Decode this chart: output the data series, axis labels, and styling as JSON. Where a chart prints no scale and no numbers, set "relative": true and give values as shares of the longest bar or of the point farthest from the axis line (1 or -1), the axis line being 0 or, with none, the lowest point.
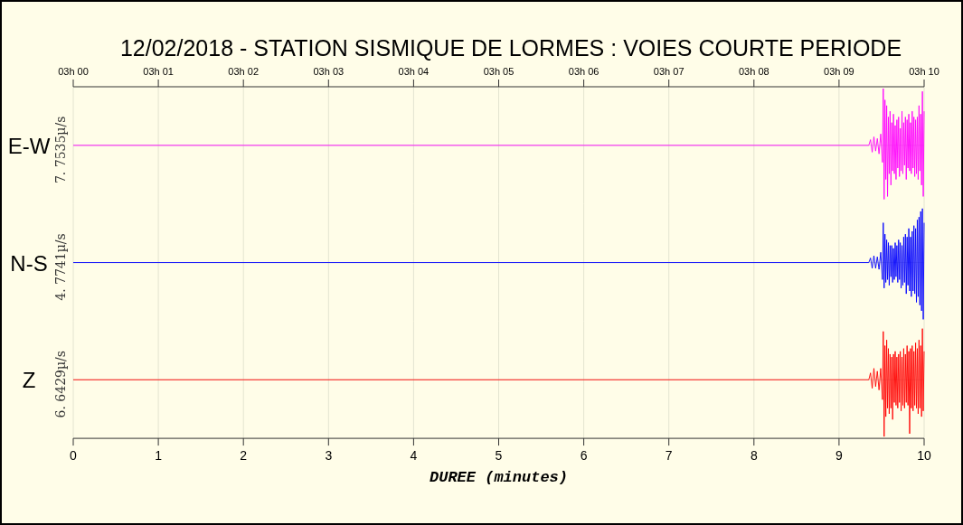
{
  "chart_data": [
    {
      "type": "line",
      "title": "12/02/2018  -  STATION SISMIQUE DE LORMES : VOIES COURTE PERIODE",
      "ylabel": "E-W",
      "annotations": [
        "7. 7535µ/s"
      ],
      "relative": true,
      "grid": "x",
      "xlim": [
        0,
        10
      ],
      "x2lim": [
        "2018-02-12T03:00",
        "2018-02-12T03:10"
      ],
      "x2ticks": [
        {
          "value": "2018-02-12T03:00",
          "label": "03h 00"
        },
        {
          "value": "2018-02-12T03:01",
          "label": "03h 01"
        },
        {
          "value": "2018-02-12T03:02",
          "label": "03h 02"
        },
        {
          "value": "2018-02-12T03:03",
          "label": "03h 03"
        },
        {
          "value": "2018-02-12T03:04",
          "label": "03h 04"
        },
        {
          "value": "2018-02-12T03:05",
          "label": "03h 05"
        },
        {
          "value": "2018-02-12T03:06",
          "label": "03h 06"
        },
        {
          "value": "2018-02-12T03:07",
          "label": "03h 07"
        },
        {
          "value": "2018-02-12T03:08",
          "label": "03h 08"
        },
        {
          "value": "2018-02-12T03:09",
          "label": "03h 09"
        },
        {
          "value": "2018-02-12T03:10",
          "label": "03h 10"
        }
      ],
      "x": [
        0,
        9.35,
        9.37,
        9.39,
        9.41,
        9.43,
        9.45,
        9.47,
        9.49,
        9.51,
        9.52,
        9.53,
        9.54,
        9.55,
        9.56,
        9.57,
        9.58,
        9.59,
        9.6,
        9.61,
        9.62,
        9.63,
        9.64,
        9.65,
        9.66,
        9.67,
        9.68,
        9.69,
        9.7,
        9.71,
        9.72,
        9.73,
        9.74,
        9.75,
        9.76,
        9.77,
        9.78,
        9.79,
        9.8,
        9.81,
        9.82,
        9.83,
        9.84,
        9.85,
        9.86,
        9.87,
        9.88,
        9.89,
        9.9,
        9.91,
        9.92,
        9.93,
        9.94,
        9.95,
        9.96,
        9.97,
        9.98,
        9.99,
        10
      ],
      "series": [
        {
          "color": "#ff00ff",
          "values": [
            0,
            0,
            0.1,
            -0.12,
            0.15,
            -0.1,
            0.12,
            -0.15,
            0.2,
            -0.3,
            1,
            -0.95,
            0.8,
            -0.6,
            0.7,
            -0.9,
            0.5,
            -0.5,
            0.6,
            -0.7,
            0.4,
            -0.45,
            0.55,
            -0.5,
            0.35,
            -0.6,
            0.45,
            -0.4,
            0.5,
            -0.55,
            0.3,
            -0.45,
            0.6,
            -0.5,
            0.4,
            -0.35,
            0.5,
            -0.6,
            0.45,
            -0.4,
            0.55,
            -0.45,
            0.4,
            -0.5,
            0.6,
            -0.4,
            0.5,
            -0.55,
            0.45,
            -0.5,
            0.5,
            -0.6,
            0.7,
            -0.45,
            0.55,
            -0.7,
            0.95,
            -0.9,
            0.6
          ]
        }
      ]
    },
    {
      "type": "line",
      "ylabel": "N-S",
      "annotations": [
        "4. 7741µ/s"
      ],
      "relative": true,
      "grid": "x",
      "xlim": [
        0,
        10
      ],
      "xticks": [
        0,
        1,
        2,
        3,
        4,
        5,
        6,
        7,
        8,
        9,
        10
      ],
      "tick_labels": false,
      "x": [
        0,
        9.35,
        9.37,
        9.39,
        9.41,
        9.43,
        9.45,
        9.47,
        9.49,
        9.51,
        9.52,
        9.53,
        9.54,
        9.55,
        9.56,
        9.57,
        9.58,
        9.59,
        9.6,
        9.61,
        9.62,
        9.63,
        9.64,
        9.65,
        9.66,
        9.67,
        9.68,
        9.69,
        9.7,
        9.71,
        9.72,
        9.73,
        9.74,
        9.75,
        9.76,
        9.77,
        9.78,
        9.79,
        9.8,
        9.81,
        9.82,
        9.83,
        9.84,
        9.85,
        9.86,
        9.87,
        9.88,
        9.89,
        9.9,
        9.91,
        9.92,
        9.93,
        9.94,
        9.95,
        9.96,
        9.97,
        9.98,
        9.99,
        10
      ],
      "series": [
        {
          "color": "#0000ff",
          "values": [
            0,
            0,
            0.08,
            -0.1,
            0.12,
            -0.1,
            0.1,
            -0.12,
            0.18,
            -0.3,
            0.7,
            -0.45,
            0.5,
            -0.35,
            0.4,
            -0.3,
            0.35,
            -0.4,
            0.3,
            -0.25,
            0.3,
            -0.35,
            0.25,
            -0.3,
            0.35,
            -0.25,
            0.3,
            -0.35,
            0.4,
            -0.3,
            0.35,
            -0.45,
            0.3,
            -0.4,
            0.45,
            -0.35,
            0.5,
            -0.55,
            0.45,
            -0.4,
            0.6,
            -0.5,
            0.45,
            -0.6,
            0.55,
            -0.5,
            0.65,
            -0.55,
            0.6,
            -0.7,
            0.75,
            -0.6,
            0.8,
            -0.75,
            0.9,
            -0.85,
            0.95,
            -1,
            0.7
          ]
        }
      ]
    },
    {
      "type": "line",
      "ylabel": "Z",
      "annotations": [
        "6. 6429µ/s"
      ],
      "xlabel": "DUREE (minutes)",
      "relative": true,
      "grid": "x",
      "xlim": [
        0,
        10
      ],
      "xticks": [
        0,
        1,
        2,
        3,
        4,
        5,
        6,
        7,
        8,
        9,
        10
      ],
      "x": [
        0,
        9.35,
        9.37,
        9.39,
        9.41,
        9.43,
        9.45,
        9.47,
        9.49,
        9.51,
        9.52,
        9.53,
        9.54,
        9.55,
        9.56,
        9.57,
        9.58,
        9.59,
        9.6,
        9.61,
        9.62,
        9.63,
        9.64,
        9.65,
        9.66,
        9.67,
        9.68,
        9.69,
        9.7,
        9.71,
        9.72,
        9.73,
        9.74,
        9.75,
        9.76,
        9.77,
        9.78,
        9.79,
        9.8,
        9.81,
        9.82,
        9.83,
        9.84,
        9.85,
        9.86,
        9.87,
        9.88,
        9.89,
        9.9,
        9.91,
        9.92,
        9.93,
        9.94,
        9.95,
        9.96,
        9.97,
        9.98,
        9.99,
        10
      ],
      "series": [
        {
          "color": "#ff0000",
          "values": [
            0,
            0,
            0.12,
            -0.15,
            0.2,
            -0.12,
            0.15,
            -0.18,
            0.2,
            -0.35,
            0.85,
            -1,
            0.6,
            -0.65,
            0.7,
            -0.5,
            0.55,
            -0.6,
            0.45,
            -0.5,
            0.4,
            -0.7,
            0.45,
            -0.4,
            0.5,
            -0.45,
            0.4,
            -0.5,
            0.45,
            -0.4,
            0.5,
            -0.55,
            0.4,
            -0.45,
            0.55,
            -0.5,
            0.45,
            -0.4,
            0.6,
            -0.45,
            0.5,
            -0.95,
            0.55,
            -0.5,
            0.6,
            -0.55,
            0.5,
            -0.45,
            0.65,
            -0.5,
            0.55,
            -0.6,
            0.7,
            -0.5,
            0.6,
            -0.65,
            0.9,
            -0.55,
            0.5
          ]
        }
      ]
    }
  ]
}
